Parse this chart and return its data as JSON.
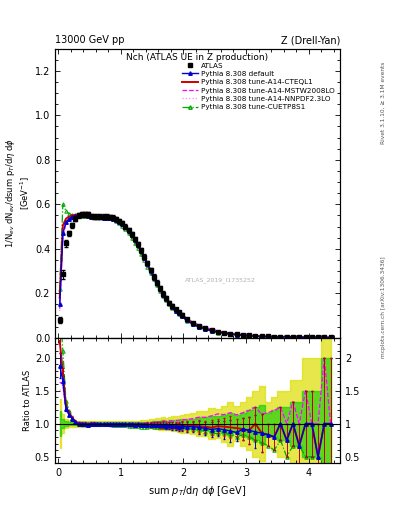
{
  "title_left": "13000 GeV pp",
  "title_right": "Z (Drell-Yan)",
  "plot_title": "Nch (ATLAS UE in Z production)",
  "xlabel": "sum $p_T$/d$\\eta$ d$\\phi$ [GeV]",
  "ylabel_main": "1/N$_{ev}$ dN$_{ev}$/dsum $p_T$/d$\\eta$ d$\\phi$\n[GeV$^{-1}$]",
  "ylabel_ratio": "Ratio to ATLAS",
  "right_label_top": "Rivet 3.1.10, ≥ 3.1M events",
  "right_label_bot": "mcplots.cern.ch [arXiv:1306.3436]",
  "watermark": "ATLAS_2019_I1735252",
  "x_data": [
    0.025,
    0.075,
    0.125,
    0.175,
    0.225,
    0.275,
    0.325,
    0.375,
    0.425,
    0.475,
    0.525,
    0.575,
    0.625,
    0.675,
    0.725,
    0.775,
    0.825,
    0.875,
    0.925,
    0.975,
    1.025,
    1.075,
    1.125,
    1.175,
    1.225,
    1.275,
    1.325,
    1.375,
    1.425,
    1.475,
    1.525,
    1.575,
    1.625,
    1.675,
    1.725,
    1.775,
    1.825,
    1.875,
    1.925,
    1.975,
    2.05,
    2.15,
    2.25,
    2.35,
    2.45,
    2.55,
    2.65,
    2.75,
    2.85,
    2.95,
    3.05,
    3.15,
    3.25,
    3.35,
    3.45,
    3.55,
    3.65,
    3.75,
    3.85,
    3.95,
    4.05,
    4.15,
    4.25,
    4.35
  ],
  "atlas_y": [
    0.08,
    0.285,
    0.425,
    0.47,
    0.505,
    0.535,
    0.55,
    0.555,
    0.555,
    0.555,
    0.548,
    0.545,
    0.545,
    0.545,
    0.545,
    0.545,
    0.543,
    0.54,
    0.535,
    0.525,
    0.515,
    0.5,
    0.485,
    0.465,
    0.445,
    0.42,
    0.393,
    0.365,
    0.335,
    0.305,
    0.275,
    0.248,
    0.222,
    0.198,
    0.178,
    0.158,
    0.142,
    0.127,
    0.114,
    0.102,
    0.083,
    0.065,
    0.052,
    0.042,
    0.034,
    0.027,
    0.022,
    0.018,
    0.015,
    0.012,
    0.01,
    0.008,
    0.007,
    0.006,
    0.005,
    0.004,
    0.004,
    0.003,
    0.003,
    0.002,
    0.002,
    0.002,
    0.001,
    0.001
  ],
  "atlas_yerr": [
    0.015,
    0.02,
    0.015,
    0.012,
    0.012,
    0.012,
    0.012,
    0.012,
    0.012,
    0.012,
    0.01,
    0.01,
    0.01,
    0.01,
    0.01,
    0.01,
    0.01,
    0.01,
    0.01,
    0.01,
    0.01,
    0.01,
    0.01,
    0.01,
    0.01,
    0.01,
    0.01,
    0.01,
    0.01,
    0.01,
    0.01,
    0.01,
    0.01,
    0.01,
    0.008,
    0.008,
    0.008,
    0.007,
    0.007,
    0.007,
    0.006,
    0.005,
    0.005,
    0.004,
    0.004,
    0.003,
    0.003,
    0.003,
    0.002,
    0.002,
    0.002,
    0.002,
    0.002,
    0.001,
    0.001,
    0.001,
    0.001,
    0.001,
    0.001,
    0.001,
    0.001,
    0.001,
    0.001,
    0.001
  ],
  "default_y": [
    0.15,
    0.47,
    0.52,
    0.535,
    0.543,
    0.548,
    0.55,
    0.55,
    0.55,
    0.548,
    0.545,
    0.543,
    0.542,
    0.541,
    0.54,
    0.54,
    0.538,
    0.535,
    0.53,
    0.52,
    0.51,
    0.496,
    0.48,
    0.46,
    0.438,
    0.415,
    0.388,
    0.36,
    0.33,
    0.3,
    0.27,
    0.244,
    0.218,
    0.194,
    0.173,
    0.154,
    0.137,
    0.122,
    0.109,
    0.098,
    0.079,
    0.062,
    0.049,
    0.039,
    0.031,
    0.025,
    0.02,
    0.016,
    0.013,
    0.011,
    0.009,
    0.007,
    0.006,
    0.005,
    0.004,
    0.004,
    0.003,
    0.003,
    0.002,
    0.002,
    0.002,
    0.001,
    0.001,
    0.001
  ],
  "cteql1_y": [
    0.18,
    0.505,
    0.535,
    0.545,
    0.55,
    0.553,
    0.554,
    0.554,
    0.553,
    0.551,
    0.548,
    0.546,
    0.544,
    0.543,
    0.542,
    0.541,
    0.539,
    0.536,
    0.531,
    0.521,
    0.511,
    0.497,
    0.481,
    0.461,
    0.439,
    0.416,
    0.389,
    0.361,
    0.331,
    0.301,
    0.271,
    0.245,
    0.219,
    0.195,
    0.174,
    0.155,
    0.138,
    0.123,
    0.11,
    0.099,
    0.08,
    0.063,
    0.05,
    0.04,
    0.032,
    0.026,
    0.021,
    0.017,
    0.014,
    0.011,
    0.009,
    0.008,
    0.006,
    0.005,
    0.004,
    0.004,
    0.003,
    0.003,
    0.002,
    0.002,
    0.002,
    0.001,
    0.001,
    0.001
  ],
  "mstw_y": [
    0.13,
    0.455,
    0.515,
    0.535,
    0.545,
    0.55,
    0.552,
    0.552,
    0.551,
    0.549,
    0.546,
    0.544,
    0.543,
    0.543,
    0.542,
    0.542,
    0.54,
    0.537,
    0.531,
    0.522,
    0.511,
    0.498,
    0.483,
    0.463,
    0.442,
    0.42,
    0.393,
    0.366,
    0.337,
    0.308,
    0.279,
    0.253,
    0.228,
    0.205,
    0.184,
    0.165,
    0.148,
    0.133,
    0.12,
    0.108,
    0.088,
    0.07,
    0.057,
    0.046,
    0.038,
    0.031,
    0.025,
    0.021,
    0.017,
    0.014,
    0.012,
    0.01,
    0.008,
    0.007,
    0.006,
    0.005,
    0.004,
    0.004,
    0.003,
    0.003,
    0.002,
    0.002,
    0.002,
    0.001
  ],
  "nnpdf_y": [
    0.12,
    0.44,
    0.51,
    0.533,
    0.544,
    0.549,
    0.551,
    0.551,
    0.55,
    0.548,
    0.545,
    0.543,
    0.542,
    0.542,
    0.542,
    0.542,
    0.54,
    0.537,
    0.531,
    0.522,
    0.511,
    0.498,
    0.483,
    0.463,
    0.442,
    0.42,
    0.393,
    0.366,
    0.337,
    0.308,
    0.279,
    0.253,
    0.228,
    0.205,
    0.184,
    0.165,
    0.148,
    0.133,
    0.12,
    0.108,
    0.088,
    0.07,
    0.057,
    0.046,
    0.038,
    0.031,
    0.025,
    0.021,
    0.017,
    0.014,
    0.012,
    0.01,
    0.008,
    0.007,
    0.006,
    0.005,
    0.004,
    0.004,
    0.003,
    0.003,
    0.002,
    0.002,
    0.002,
    0.001
  ],
  "cuetp_y": [
    0.22,
    0.6,
    0.57,
    0.558,
    0.552,
    0.55,
    0.549,
    0.549,
    0.549,
    0.548,
    0.546,
    0.544,
    0.543,
    0.542,
    0.541,
    0.54,
    0.537,
    0.533,
    0.526,
    0.515,
    0.503,
    0.488,
    0.47,
    0.449,
    0.427,
    0.403,
    0.376,
    0.349,
    0.32,
    0.292,
    0.263,
    0.237,
    0.212,
    0.189,
    0.169,
    0.15,
    0.134,
    0.119,
    0.107,
    0.096,
    0.077,
    0.06,
    0.047,
    0.037,
    0.029,
    0.023,
    0.019,
    0.015,
    0.012,
    0.01,
    0.008,
    0.006,
    0.005,
    0.004,
    0.003,
    0.003,
    0.002,
    0.002,
    0.002,
    0.001,
    0.001,
    0.001,
    0.001,
    0.001
  ],
  "color_atlas": "#000000",
  "color_default": "#0000CC",
  "color_cteql1": "#CC0000",
  "color_mstw": "#FF00FF",
  "color_nnpdf": "#FF88FF",
  "color_cuetp": "#00AA00",
  "band_green": "#00CC00",
  "band_yellow": "#DDDD00",
  "ylim_main": [
    0.0,
    1.3
  ],
  "ylim_ratio": [
    0.4,
    2.3
  ],
  "xlim": [
    -0.05,
    4.5
  ],
  "ratio_yticks": [
    0.5,
    1.0,
    1.5,
    2.0
  ],
  "main_yticks": [
    0.0,
    0.2,
    0.4,
    0.6,
    0.8,
    1.0,
    1.2
  ]
}
